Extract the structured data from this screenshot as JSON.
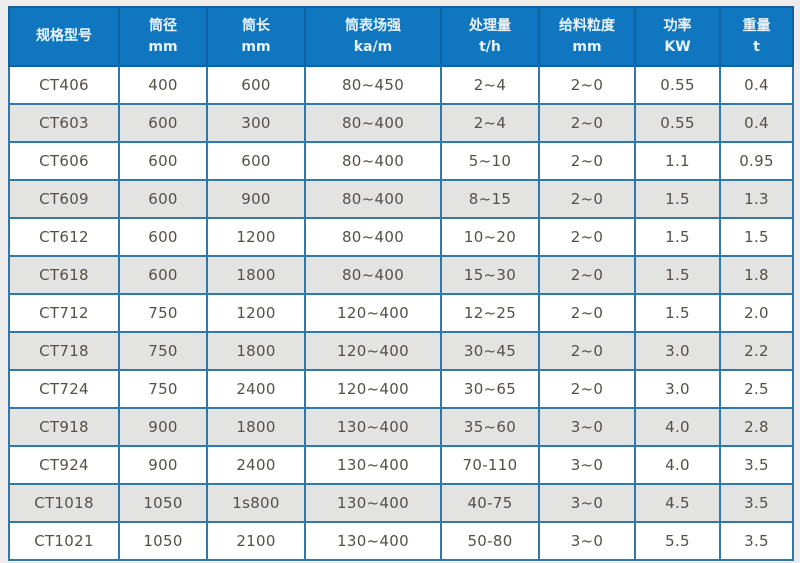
{
  "chart_data": {
    "type": "table",
    "title": "",
    "columns": [
      {
        "label": "规格型号",
        "unit": ""
      },
      {
        "label": "筒径",
        "unit": "mm"
      },
      {
        "label": "筒长",
        "unit": "mm"
      },
      {
        "label": "筒表场强",
        "unit": "ka/m"
      },
      {
        "label": "处理量",
        "unit": "t/h"
      },
      {
        "label": "给料粒度",
        "unit": "mm"
      },
      {
        "label": "功率",
        "unit": "KW"
      },
      {
        "label": "重量",
        "unit": "t"
      }
    ],
    "rows": [
      [
        "CT406",
        "400",
        "600",
        "80~450",
        "2~4",
        "2~0",
        "0.55",
        "0.4"
      ],
      [
        "CT603",
        "600",
        "300",
        "80~400",
        "2~4",
        "2~0",
        "0.55",
        "0.4"
      ],
      [
        "CT606",
        "600",
        "600",
        "80~400",
        "5~10",
        "2~0",
        "1.1",
        "0.95"
      ],
      [
        "CT609",
        "600",
        "900",
        "80~400",
        "8~15",
        "2~0",
        "1.5",
        "1.3"
      ],
      [
        "CT612",
        "600",
        "1200",
        "80~400",
        "10~20",
        "2~0",
        "1.5",
        "1.5"
      ],
      [
        "CT618",
        "600",
        "1800",
        "80~400",
        "15~30",
        "2~0",
        "1.5",
        "1.8"
      ],
      [
        "CT712",
        "750",
        "1200",
        "120~400",
        "12~25",
        "2~0",
        "1.5",
        "2.0"
      ],
      [
        "CT718",
        "750",
        "1800",
        "120~400",
        "30~45",
        "2~0",
        "3.0",
        "2.2"
      ],
      [
        "CT724",
        "750",
        "2400",
        "120~400",
        "30~65",
        "2~0",
        "3.0",
        "2.5"
      ],
      [
        "CT918",
        "900",
        "1800",
        "130~400",
        "35~60",
        "3~0",
        "4.0",
        "2.8"
      ],
      [
        "CT924",
        "900",
        "2400",
        "130~400",
        "70-110",
        "3~0",
        "4.0",
        "3.5"
      ],
      [
        "CT1018",
        "1050",
        "1s800",
        "130~400",
        "40-75",
        "3~0",
        "4.5",
        "3.5"
      ],
      [
        "CT1021",
        "1050",
        "2100",
        "130~400",
        "50-80",
        "3~0",
        "5.5",
        "3.5"
      ]
    ]
  },
  "colors": {
    "header_bg": "#0f76bf",
    "header_text": "#eaf3fb",
    "header_border": "#10619f",
    "cell_border": "#2f78ab",
    "row_alt_bg": "#e3e3e1",
    "row_bg": "#ffffff",
    "cell_text": "#55504a",
    "page_bg": "#ececec"
  }
}
